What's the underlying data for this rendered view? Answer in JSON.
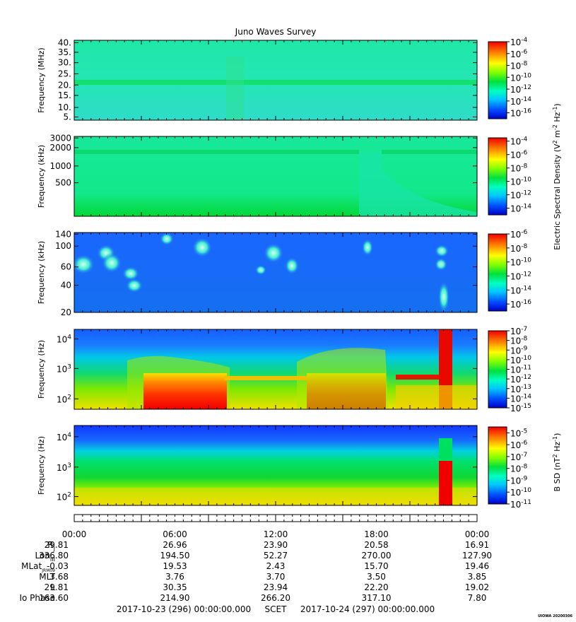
{
  "title": "Juno Waves Survey",
  "chart_data": [
    {
      "type": "heatmap",
      "panel": "MHz",
      "ylabel": "Frequency (MHz)",
      "yticks": [
        "40.",
        "35.",
        "30.",
        "25.",
        "20.",
        "15.",
        "10.",
        "5."
      ],
      "yscale": "linear",
      "ylim": [
        3.5,
        41.5
      ],
      "features": [
        "narrowband line near 21 MHz across full interval"
      ],
      "colorbar": {
        "ticks": [
          "-4",
          "-6",
          "-8",
          "-10",
          "-12",
          "-14",
          "-16"
        ],
        "scale": "log",
        "range_exp": [
          -17,
          -4
        ]
      }
    },
    {
      "type": "heatmap",
      "panel": "kHz-high",
      "ylabel": "Frequency (kHz)",
      "yticks": [
        "3000",
        "2000",
        "1000",
        "500"
      ],
      "yscale": "log",
      "colorbar": {
        "ticks": [
          "-4",
          "-6",
          "-8",
          "-10",
          "-12",
          "-14"
        ],
        "scale": "log",
        "range_exp": [
          -15,
          -3.5
        ]
      }
    },
    {
      "type": "heatmap",
      "panel": "kHz-low",
      "ylabel": "Frequency (kHz)",
      "yticks": [
        "140",
        "100",
        "60",
        "40",
        "20"
      ],
      "yscale": "log",
      "colorbar": {
        "ticks": [
          "-6",
          "-8",
          "-10",
          "-12",
          "-14",
          "-16"
        ],
        "scale": "log",
        "range_exp": [
          -17,
          -6
        ]
      }
    },
    {
      "type": "heatmap",
      "panel": "Hz-electric",
      "ylabel": "Frequency (Hz)",
      "yticks": [
        {
          "base": "10",
          "exp": "4"
        },
        {
          "base": "10",
          "exp": "3"
        },
        {
          "base": "10",
          "exp": "2"
        }
      ],
      "yscale": "log",
      "colorbar": {
        "ticks": [
          "-7",
          "-8",
          "-9",
          "-10",
          "-11",
          "-12",
          "-13",
          "-14",
          "-15"
        ],
        "scale": "log",
        "range_exp": [
          -15,
          -7
        ]
      }
    },
    {
      "type": "heatmap",
      "panel": "Hz-magnetic",
      "ylabel": "Frequency (Hz)",
      "yticks": [
        {
          "base": "10",
          "exp": "4"
        },
        {
          "base": "10",
          "exp": "3"
        },
        {
          "base": "10",
          "exp": "2"
        }
      ],
      "yscale": "log",
      "colorbar": {
        "ticks": [
          "-5",
          "-6",
          "-7",
          "-8",
          "-9",
          "-10",
          "-11"
        ],
        "scale": "log",
        "range_exp": [
          -11,
          -4.5
        ]
      }
    }
  ],
  "colorbar_labels": {
    "electric": "Electric Spectral Density (V² m⁻² Hz⁻¹)",
    "magnetic": "B SD (nT² Hz⁻¹)",
    "electric_parts": [
      "Electric Spectral Density (V",
      "2",
      " m",
      "-2",
      " Hz",
      "-1",
      ")"
    ],
    "magnetic_parts": [
      "B SD (nT",
      "2",
      " Hz",
      "-1",
      ")"
    ]
  },
  "colorbar_tick_base": "10",
  "time_axis": {
    "labels": [
      "00:00",
      "06:00",
      "12:00",
      "18:00",
      "00:00"
    ],
    "ephemeris": [
      {
        "name": "R",
        "sub": "J",
        "values": [
          "29.81",
          "26.96",
          "23.90",
          "20.58",
          "16.91"
        ]
      },
      {
        "name": "Lon",
        "sub": "III",
        "values": [
          "336.80",
          "194.50",
          "52.27",
          "270.00",
          "127.90"
        ]
      },
      {
        "name": "MLat",
        "sub": "JRM09",
        "values": [
          "-0.03",
          "19.53",
          "2.43",
          "15.70",
          "19.46"
        ]
      },
      {
        "name": "MLT",
        "sub": "",
        "values": [
          "3.68",
          "3.76",
          "3.70",
          "3.50",
          "3.85"
        ]
      },
      {
        "name": "L",
        "sub": "",
        "values": [
          "29.81",
          "30.35",
          "23.94",
          "22.20",
          "19.02"
        ]
      },
      {
        "name": "Io Phase",
        "sub": "",
        "values": [
          "163.60",
          "214.90",
          "266.20",
          "317.10",
          "7.80"
        ]
      }
    ]
  },
  "footer": {
    "start": "2017-10-23 (296) 00:00:00.000",
    "scet": "SCET",
    "end": "2017-10-24 (297) 00:00:00.000",
    "stamp": "UIOWA 20200306"
  }
}
